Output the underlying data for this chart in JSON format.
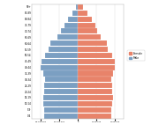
{
  "title": "",
  "age_groups": [
    "90+",
    "85-89",
    "80-84",
    "75-79",
    "70-74",
    "65-69",
    "60-64",
    "55-59",
    "50-54",
    "45-49",
    "40-44",
    "35-39",
    "30-34",
    "25-29",
    "20-24",
    "15-19",
    "10-14",
    "5-9",
    "0-4"
  ],
  "males": [
    100000,
    280000,
    530000,
    720000,
    900000,
    1100000,
    1480000,
    1580000,
    1780000,
    1980000,
    2000000,
    1900000,
    1780000,
    1820000,
    1850000,
    1880000,
    1860000,
    1840000,
    1830000
  ],
  "females": [
    260000,
    500000,
    760000,
    960000,
    1060000,
    1220000,
    1560000,
    1640000,
    1850000,
    2000000,
    2020000,
    1920000,
    1820000,
    1870000,
    1880000,
    1890000,
    1860000,
    1830000,
    1820000
  ],
  "male_color": "#7b9fc2",
  "female_color": "#e8836a",
  "background_color": "#ffffff",
  "xlim": 2500000,
  "x_ticks": [
    -2000000,
    -1000000,
    0,
    1000000,
    2000000
  ],
  "legend_female": "Female",
  "legend_male": "Male"
}
